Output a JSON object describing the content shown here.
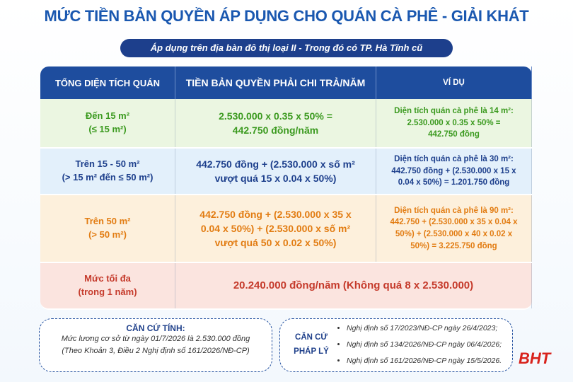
{
  "header": {
    "title": "MỨC TIỀN BẢN QUYỀN ÁP DỤNG CHO QUÁN CÀ PHÊ - GIẢI KHÁT",
    "subtitle": "Áp dụng trên địa bàn đô thị loại II - Trong đó có TP. Hà Tĩnh cũ"
  },
  "table": {
    "columns": [
      "TỔNG DIỆN TÍCH QUÁN",
      "TIỀN BẢN QUYỀN PHẢI CHI TRẢ/NĂM",
      "VÍ DỤ"
    ],
    "rows": [
      [
        [
          "Đến 15 m²",
          "(≤ 15 m²)"
        ],
        [
          "2.530.000 x 0.35 x 50% =",
          "442.750 đồng/năm"
        ],
        [
          "Diện tích quán cà phê là 14 m²:",
          "2.530.000 x 0.35 x 50% =",
          "442.750 đồng"
        ]
      ],
      [
        [
          "Trên 15 - 50 m²",
          "(> 15 m² đến ≤ 50 m²)"
        ],
        [
          "442.750 đồng + (2.530.000 x số m²",
          "vượt quá 15 x 0.04 x 50%)"
        ],
        [
          "Diện tích quán cà phê là 30 m²:",
          "442.750 đồng + (2.530.000 x 15 x",
          "0.04 x 50%) = 1.201.750 đồng"
        ]
      ],
      [
        [
          "Trên 50 m²",
          "(> 50 m²)"
        ],
        [
          "442.750 đồng + (2.530.000 x 35 x",
          "0.04 x 50%) + (2.530.000 x số m²",
          "vượt quá 50 x 0.02 x 50%)"
        ],
        [
          "Diện tích quán cà phê là 90 m²:",
          "442.750 + (2.530.000 x 35 x 0.04 x",
          "50%) + (2.530.000 x 40 x 0.02 x",
          "50%) = 3.225.750 đồng"
        ]
      ],
      [
        [
          "Mức tối đa",
          "(trong 1 năm)"
        ],
        [
          "20.240.000 đồng/năm (Không quá 8 x 2.530.000)"
        ]
      ]
    ]
  },
  "basis": {
    "title": "CĂN CỨ TÍNH:",
    "lines": [
      "Mức lương cơ sở từ ngày 01/7/2026 là 2.530.000 đồng",
      "(Theo Khoản 3, Điều 2 Nghị định số 161/2026/NĐ-CP)"
    ]
  },
  "legal": {
    "label": [
      "CĂN CỨ",
      "PHÁP LÝ"
    ],
    "items": [
      "Nghị định số 17/2023/NĐ-CP ngày 26/4/2023;",
      "Nghị định số 134/2026/NĐ-CP ngày 06/4/2026;",
      "Nghị định số 161/2026/NĐ-CP ngày 15/5/2026."
    ]
  },
  "logo": "BHT"
}
